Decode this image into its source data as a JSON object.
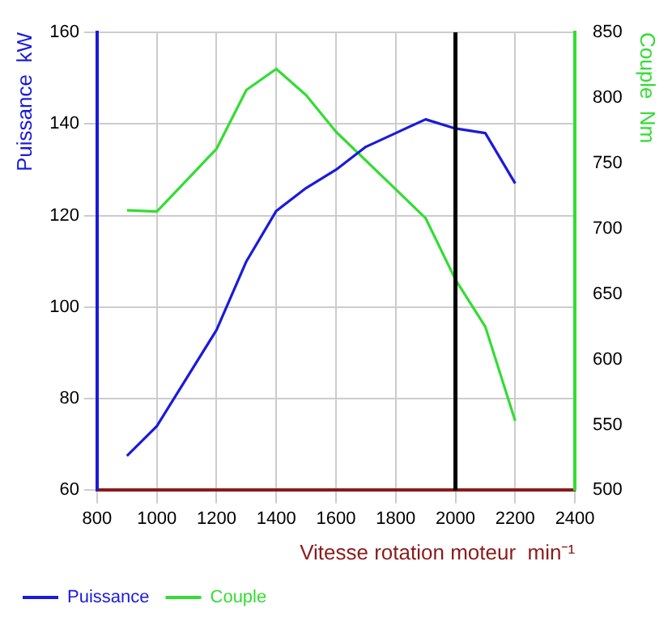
{
  "chart_data": {
    "type": "line",
    "xlabel": "Vitesse rotation moteur  min⁻¹",
    "ylabel": "Puissance  kW",
    "y2label": "Couple  Nm",
    "xlim": [
      800,
      2400
    ],
    "xticks": [
      800,
      1000,
      1200,
      1400,
      1600,
      1800,
      2000,
      2200,
      2400
    ],
    "ylim": [
      60,
      160
    ],
    "yticks": [
      60,
      80,
      100,
      120,
      140,
      160
    ],
    "y2lim": [
      500,
      850
    ],
    "y2ticks": [
      500,
      550,
      600,
      650,
      700,
      750,
      800,
      850
    ],
    "grid": true,
    "legend": "bottom left",
    "marker": "none",
    "line_style": "solid",
    "ref_lines": [
      {
        "axis": "x",
        "value": 2000,
        "color": "#000000"
      }
    ],
    "series": [
      {
        "name": "Puissance",
        "color": "#1a1adc",
        "x": [
          900,
          1000,
          1200,
          1300,
          1400,
          1500,
          1600,
          1700,
          1800,
          1900,
          2000,
          2100,
          2200
        ],
        "values": [
          67.5,
          74,
          95,
          110,
          121,
          126,
          130,
          135,
          138,
          141,
          139,
          138,
          127
        ]
      },
      {
        "name": "Couple",
        "color": "#33dd33",
        "axis": "y2",
        "x": [
          900,
          1000,
          1200,
          1300,
          1400,
          1500,
          1600,
          1800,
          1900,
          2000,
          2100,
          2200
        ],
        "values": [
          714,
          713,
          761,
          806,
          822,
          802,
          774,
          730,
          708,
          661,
          625,
          553
        ]
      }
    ]
  }
}
